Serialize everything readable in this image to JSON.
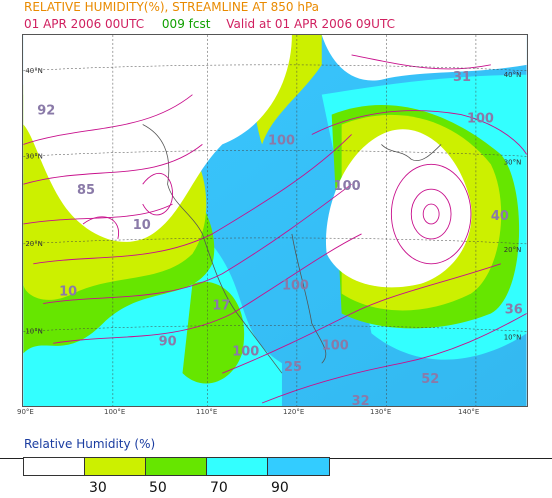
{
  "header": {
    "title": "RELATIVE HUMIDITY(%), STREAMLINE AT 850 hPa",
    "init": "01 APR 2006 00UTC",
    "forecast": "009 fcst",
    "valid": "Valid at 01 APR 2006 09UTC"
  },
  "axes": {
    "lon_labels": [
      "90°E",
      "100°E",
      "110°E",
      "120°E",
      "130°E",
      "140°E"
    ],
    "lat_labels_left": [
      "40°N",
      "30°N",
      "20°N",
      "10°N"
    ],
    "lat_labels_right": [
      "40°N",
      "30°N",
      "20°N",
      "10°N"
    ]
  },
  "map_labels": [
    "92",
    "85",
    "10",
    "10",
    "17",
    "90",
    "100",
    "100",
    "25",
    "100",
    "100",
    "100",
    "31",
    "100",
    "40",
    "36",
    "52",
    "32"
  ],
  "legend": {
    "title": "Relative Humidity (%)",
    "levels": [
      "30",
      "50",
      "70",
      "90"
    ],
    "colors": [
      "#ffffff",
      "#ccf000",
      "#66e600",
      "#33ffff",
      "#33ccff"
    ]
  }
}
